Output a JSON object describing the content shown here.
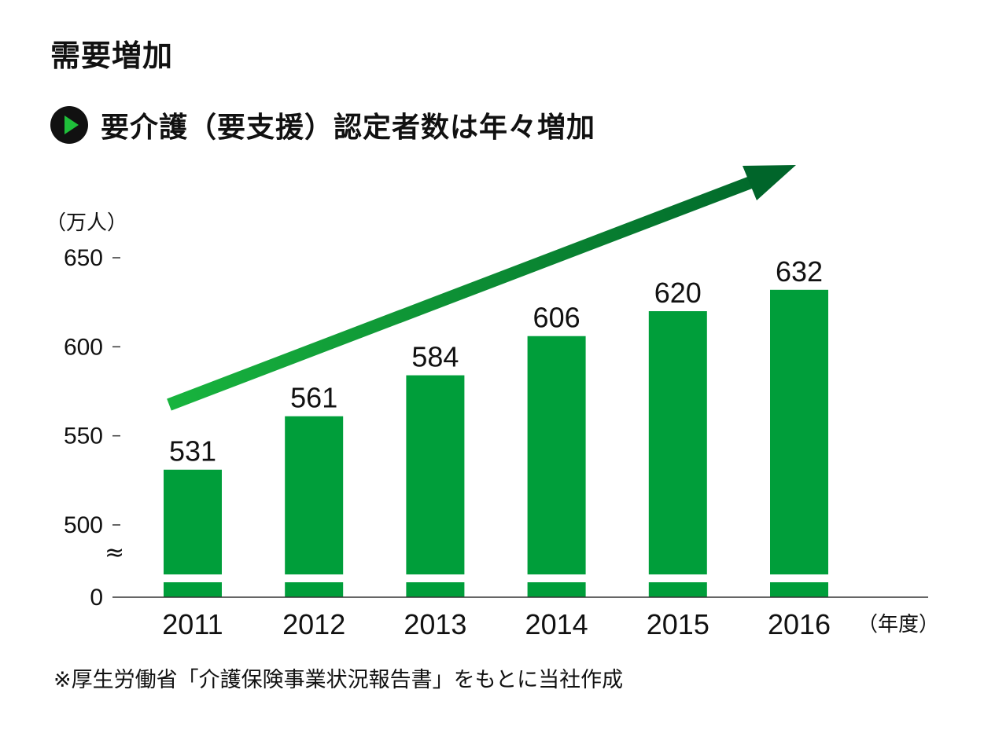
{
  "heading": "需要増加",
  "subheading": "要介護（要支援）認定者数は年々増加",
  "footnote": "※厚生労働省「介護保険事業状況報告書」をもとに当社作成",
  "colors": {
    "bar": "#009e3a",
    "arrow_start": "#18b43e",
    "arrow_end": "#00652a",
    "axis": "#333333"
  },
  "chart_data": {
    "type": "bar",
    "title": "要介護（要支援）認定者数は年々増加",
    "unit_label": "（万人）",
    "xlabel": "（年度）",
    "categories": [
      "2011",
      "2012",
      "2013",
      "2014",
      "2015",
      "2016"
    ],
    "values": [
      531,
      561,
      584,
      606,
      620,
      632
    ],
    "value_labels": [
      "531",
      "561",
      "584",
      "606",
      "620",
      "632"
    ],
    "yticks": [
      "0",
      "500",
      "550",
      "600",
      "650"
    ],
    "ylim": [
      500,
      650
    ],
    "axis_break": true,
    "axis_break_symbol": "≈",
    "trend_arrow": true
  }
}
